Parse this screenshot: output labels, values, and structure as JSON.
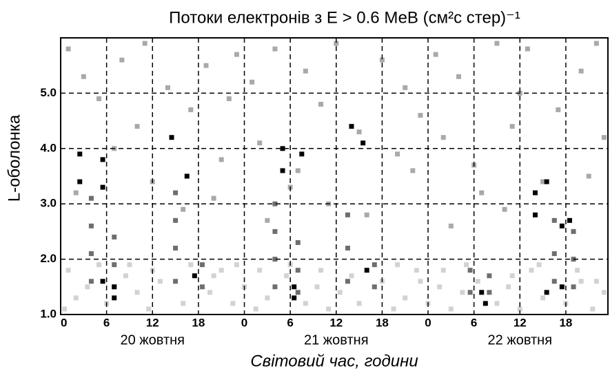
{
  "chart_data": {
    "type": "scatter",
    "title": "Потоки електронів з E > 0.6 МеВ (см²с стер)⁻¹",
    "xlabel": "Світовий час, години",
    "ylabel": "L-оболонка",
    "day_labels": [
      "20 жовтня",
      "21 жовтня",
      "22 жовтня"
    ],
    "xlim": [
      0,
      71.5
    ],
    "ylim": [
      1,
      6
    ],
    "xticks": [
      0,
      6,
      12,
      18,
      {
        "value": 24,
        "label": "0"
      },
      {
        "value": 30,
        "label": "6"
      },
      {
        "value": 36,
        "label": "12"
      },
      {
        "value": 42,
        "label": "18"
      },
      {
        "value": 48,
        "label": "0"
      },
      {
        "value": 54,
        "label": "6"
      },
      {
        "value": 60,
        "label": "12"
      },
      {
        "value": 66,
        "label": "18"
      }
    ],
    "yticks": [
      {
        "value": 1,
        "label": "1.0"
      },
      {
        "value": 2,
        "label": "2.0"
      },
      {
        "value": 3,
        "label": "3.0"
      },
      {
        "value": 4,
        "label": "4.0"
      },
      {
        "value": 5,
        "label": "5.0"
      }
    ],
    "grid": true,
    "series": [
      {
        "color": "#d2d2d2",
        "x": [
          0.5,
          2,
          3.5,
          6,
          8.5,
          10,
          11.5,
          13,
          16,
          19.5,
          21,
          22.5,
          24,
          25.5,
          27,
          29.5,
          32,
          33.5,
          35,
          36.5,
          39,
          42,
          43.5,
          45,
          46.5,
          48,
          49.5,
          51,
          52.5,
          54.5,
          57,
          58.5,
          60,
          61.5,
          63,
          66,
          68,
          69.5,
          71,
          1,
          5,
          9,
          12,
          17,
          20,
          23,
          26,
          30,
          34,
          38,
          44,
          47,
          50,
          53,
          59,
          62.5,
          67.5,
          70
        ],
        "y": [
          1.1,
          1.3,
          1.5,
          1.2,
          1.7,
          1.4,
          1.1,
          1.6,
          1.2,
          1.4,
          1.8,
          1.2,
          1.5,
          1.1,
          1.3,
          1.7,
          1.2,
          1.5,
          1.1,
          1.4,
          1.2,
          1.6,
          1.1,
          1.3,
          1.8,
          1.2,
          1.5,
          1.1,
          1.4,
          1.6,
          1.2,
          1.5,
          1.1,
          1.8,
          1.3,
          1.2,
          1.6,
          1.1,
          1.4,
          1.8,
          1.9,
          1.9,
          1.8,
          1.9,
          1.7,
          1.9,
          1.8,
          1.9,
          1.8,
          1.7,
          1.9,
          1.6,
          1.8,
          1.9,
          1.7,
          1.9,
          1.8,
          1.6
        ]
      },
      {
        "color": "#a9a9a9",
        "x": [
          1,
          3,
          5,
          8,
          10,
          11,
          14,
          17,
          19,
          21,
          22,
          23,
          25,
          26,
          28,
          31,
          32,
          34,
          36,
          39,
          42,
          44,
          45,
          47,
          49,
          50,
          52,
          54,
          57,
          59,
          60,
          61,
          65,
          68,
          69,
          70,
          2,
          7,
          12,
          16,
          20,
          27,
          30,
          35,
          40,
          46,
          51,
          55,
          58,
          63,
          67,
          71
        ],
        "y": [
          5.8,
          5.3,
          4.9,
          5.6,
          4.4,
          5.9,
          5.1,
          4.7,
          5.5,
          3.8,
          4.9,
          5.7,
          5.2,
          4.1,
          5.8,
          3.6,
          5.4,
          4.8,
          5.9,
          4.3,
          5.6,
          3.9,
          5.1,
          4.6,
          5.7,
          4.2,
          5.3,
          3.7,
          5.9,
          4.4,
          5.0,
          5.8,
          4.7,
          5.4,
          3.5,
          5.9,
          3.2,
          4.0,
          3.4,
          2.9,
          3.1,
          2.7,
          3.3,
          3.0,
          2.8,
          3.6,
          2.6,
          3.2,
          2.9,
          3.4,
          2.5,
          4.2
        ]
      },
      {
        "color": "#6e6e6e",
        "x": [
          4,
          4,
          4,
          4,
          7,
          7,
          7,
          15,
          15,
          15,
          15,
          18.5,
          18.5,
          28,
          28,
          28,
          28,
          31,
          31,
          31,
          37.5,
          37.5,
          37.5,
          41,
          41,
          53.5,
          53.5,
          56,
          56,
          64.5,
          64.5,
          64.5,
          67,
          67,
          67
        ],
        "y": [
          1.6,
          2.1,
          2.6,
          3.1,
          1.5,
          1.9,
          2.4,
          1.6,
          2.2,
          2.7,
          3.2,
          1.5,
          1.9,
          1.5,
          2.0,
          2.5,
          3.0,
          1.4,
          1.8,
          2.3,
          1.6,
          2.2,
          2.8,
          1.5,
          1.9,
          1.4,
          1.8,
          1.4,
          1.7,
          1.6,
          2.1,
          2.7,
          1.5,
          2.0,
          2.5
        ]
      },
      {
        "color": "#000000",
        "x": [
          2.5,
          2.5,
          5.5,
          5.5,
          5.5,
          7,
          7,
          14.5,
          16.5,
          17.5,
          29,
          29,
          30.5,
          30.5,
          31.5,
          38,
          39.5,
          40,
          55,
          55.5,
          62,
          62,
          63.5,
          63.5,
          65.5,
          65.5,
          66.5
        ],
        "y": [
          3.4,
          3.9,
          3.3,
          3.8,
          1.6,
          1.5,
          1.3,
          4.2,
          3.5,
          1.7,
          3.6,
          4.0,
          1.5,
          1.3,
          3.9,
          4.4,
          4.1,
          1.8,
          1.4,
          1.2,
          3.2,
          2.8,
          3.4,
          1.4,
          2.6,
          1.5,
          2.7
        ]
      }
    ]
  }
}
